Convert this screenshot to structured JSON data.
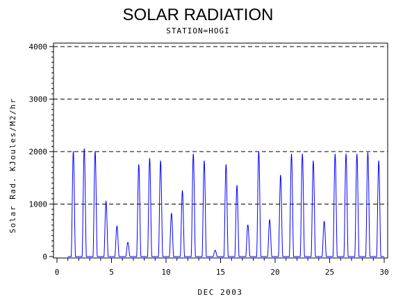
{
  "chart_data": {
    "type": "line",
    "title": "SOLAR RADIATION",
    "subtitle": "STATION=HOGI",
    "xlabel": "DEC 2003",
    "ylabel": "Solar Rad. KJoules/M2/hr",
    "xlim": [
      0,
      30
    ],
    "ylim": [
      0,
      4000
    ],
    "xticks": [
      0,
      5,
      10,
      15,
      20,
      25,
      30
    ],
    "yticks": [
      0,
      1000,
      2000,
      3000,
      4000
    ],
    "grid": "horizontal dashed at y ticks",
    "line_color": "#0000ff",
    "daily_peaks": [
      {
        "day": 1,
        "peak": 2000
      },
      {
        "day": 2,
        "peak": 2050
      },
      {
        "day": 3,
        "peak": 2000
      },
      {
        "day": 4,
        "peak": 1050
      },
      {
        "day": 5,
        "peak": 580
      },
      {
        "day": 6,
        "peak": 270
      },
      {
        "day": 7,
        "peak": 1750
      },
      {
        "day": 8,
        "peak": 1870
      },
      {
        "day": 9,
        "peak": 1820
      },
      {
        "day": 10,
        "peak": 820
      },
      {
        "day": 11,
        "peak": 1250
      },
      {
        "day": 12,
        "peak": 1950
      },
      {
        "day": 13,
        "peak": 1820
      },
      {
        "day": 14,
        "peak": 120
      },
      {
        "day": 15,
        "peak": 1750
      },
      {
        "day": 16,
        "peak": 1350
      },
      {
        "day": 17,
        "peak": 600
      },
      {
        "day": 18,
        "peak": 2000
      },
      {
        "day": 19,
        "peak": 700
      },
      {
        "day": 20,
        "peak": 1550
      },
      {
        "day": 21,
        "peak": 1950
      },
      {
        "day": 22,
        "peak": 1950
      },
      {
        "day": 23,
        "peak": 1820
      },
      {
        "day": 24,
        "peak": 670
      },
      {
        "day": 25,
        "peak": 1950
      },
      {
        "day": 26,
        "peak": 1950
      },
      {
        "day": 27,
        "peak": 1950
      },
      {
        "day": 28,
        "peak": 1980
      },
      {
        "day": 29,
        "peak": 1820
      }
    ]
  }
}
